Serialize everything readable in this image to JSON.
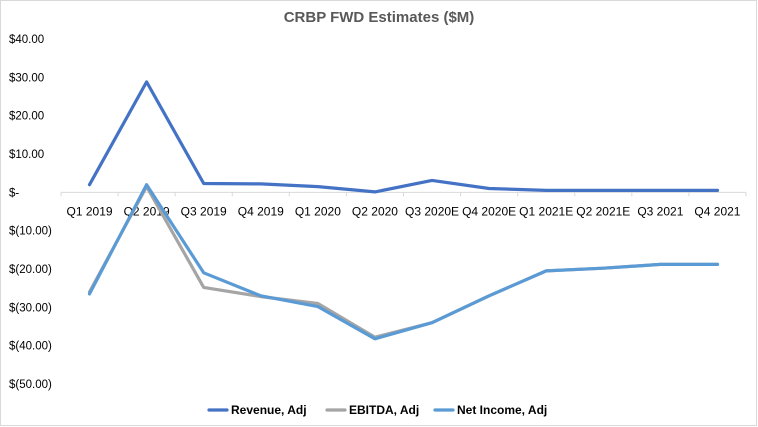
{
  "chart_data": {
    "type": "line",
    "title": "CRBP FWD Estimates ($M)",
    "xlabel": "",
    "ylabel": "",
    "categories": [
      "Q1 2019",
      "Q2 2019",
      "Q3 2019",
      "Q4 2019",
      "Q1 2020",
      "Q2 2020",
      "Q3 2020E",
      "Q4 2020E",
      "Q1 2021E",
      "Q2 2021E",
      "Q3 2021",
      "Q4 2021"
    ],
    "ylim": [
      -50,
      40
    ],
    "yticks": [
      40,
      30,
      20,
      10,
      0,
      -10,
      -20,
      -30,
      -40,
      -50
    ],
    "ytick_labels": [
      "$40.00",
      "$30.00",
      "$20.00",
      "$10.00",
      "$-",
      "$(10.00)",
      "$(20.00)",
      "$(30.00)",
      "$(40.00)",
      "$(50.00)"
    ],
    "grid": false,
    "legend_position": "bottom",
    "series": [
      {
        "name": "Revenue, Adj",
        "color": "#4472C4",
        "values": [
          2.0,
          28.8,
          2.3,
          2.2,
          1.5,
          0.1,
          3.1,
          1.0,
          0.5,
          0.5,
          0.5,
          0.5
        ]
      },
      {
        "name": "EBITDA, Adj",
        "color": "#A5A5A5",
        "values": [
          -26.0,
          1.5,
          -24.8,
          -27.2,
          -29.0,
          -37.8,
          -34.0,
          -27.0,
          -20.5,
          -19.8,
          -18.8,
          -18.8
        ]
      },
      {
        "name": "Net Income, Adj",
        "color": "#5B9BD5",
        "values": [
          -26.5,
          2.0,
          -21.0,
          -27.0,
          -29.8,
          -38.2,
          -34.0,
          -27.0,
          -20.5,
          -19.8,
          -18.8,
          -18.8
        ]
      }
    ]
  }
}
